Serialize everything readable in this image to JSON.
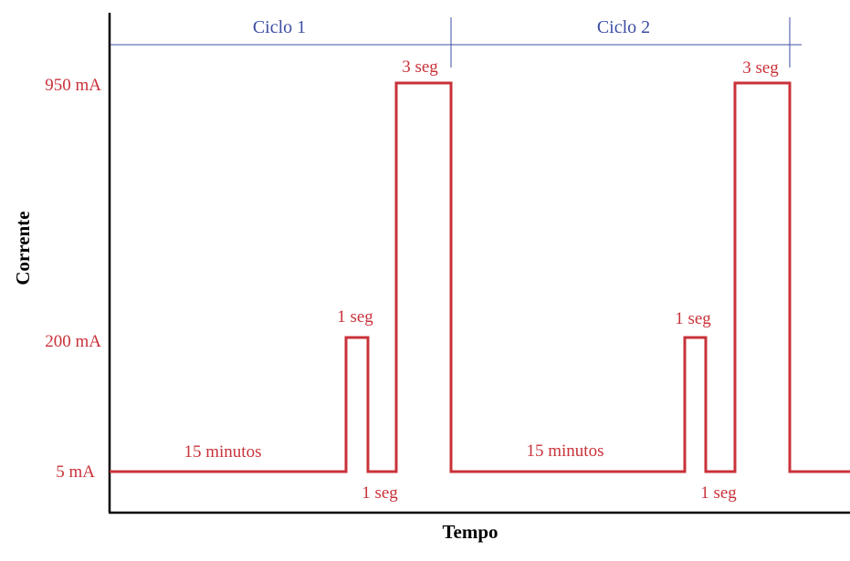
{
  "colors": {
    "signal": "#c9323a",
    "cycle": "#3d4ea3",
    "axis": "#000000",
    "background": "#ffffff"
  },
  "axes": {
    "y_title": "Corrente",
    "x_title": "Tempo",
    "y_ticks": [
      "950 mA",
      "200 mA",
      "5 mA"
    ]
  },
  "cycles": [
    {
      "label": "Ciclo 1"
    },
    {
      "label": "Ciclo 2"
    }
  ],
  "annotations": {
    "c1_rest": "15 minutos",
    "c1_pulse_small": "1 seg",
    "c1_gap": "1 seg",
    "c1_pulse_large": "3 seg",
    "c2_rest": "15 minutos",
    "c2_pulse_small": "1 seg",
    "c2_gap": "1 seg",
    "c2_pulse_large": "3 seg"
  }
}
